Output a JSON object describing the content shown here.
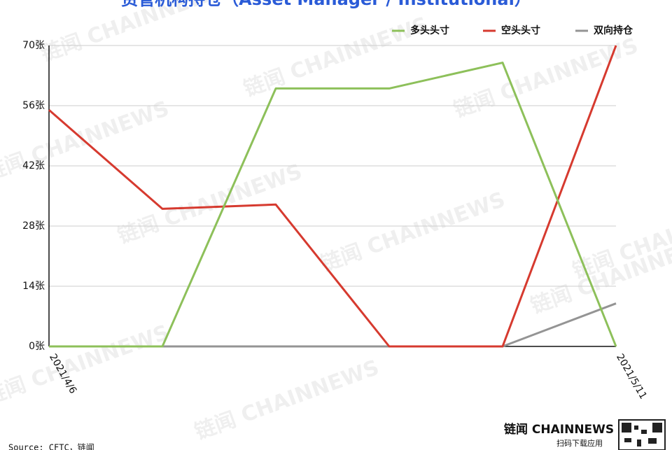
{
  "chart_data": {
    "type": "line",
    "title": "资管机构持仓（Asset Manager / Institutional）",
    "categories": [
      "2021/4/6",
      null,
      null,
      null,
      null,
      "2021/5/11"
    ],
    "series": [
      {
        "name": "多头头寸",
        "color": "#8dc05a",
        "values": [
          0,
          0,
          60,
          60,
          66,
          0
        ]
      },
      {
        "name": "空头头寸",
        "color": "#d63a2f",
        "values": [
          55,
          32,
          33,
          0,
          0,
          70
        ]
      },
      {
        "name": "双向持仓",
        "color": "#949494",
        "values": [
          0,
          0,
          0,
          0,
          0,
          10
        ]
      }
    ],
    "ylim": [
      0,
      70
    ],
    "yticks": [
      {
        "value": 0,
        "label": "0张"
      },
      {
        "value": 14,
        "label": "14张"
      },
      {
        "value": 28,
        "label": "28张"
      },
      {
        "value": 42,
        "label": "42张"
      },
      {
        "value": 56,
        "label": "56张"
      },
      {
        "value": 70,
        "label": "70张"
      }
    ],
    "grid": true,
    "legend": "top-right",
    "source": "Source: CFTC，链闻",
    "watermark": "链闻 CHAINNEWS",
    "brand": "链闻 CHAINNEWS",
    "brand_sub": "扫码下载应用"
  }
}
